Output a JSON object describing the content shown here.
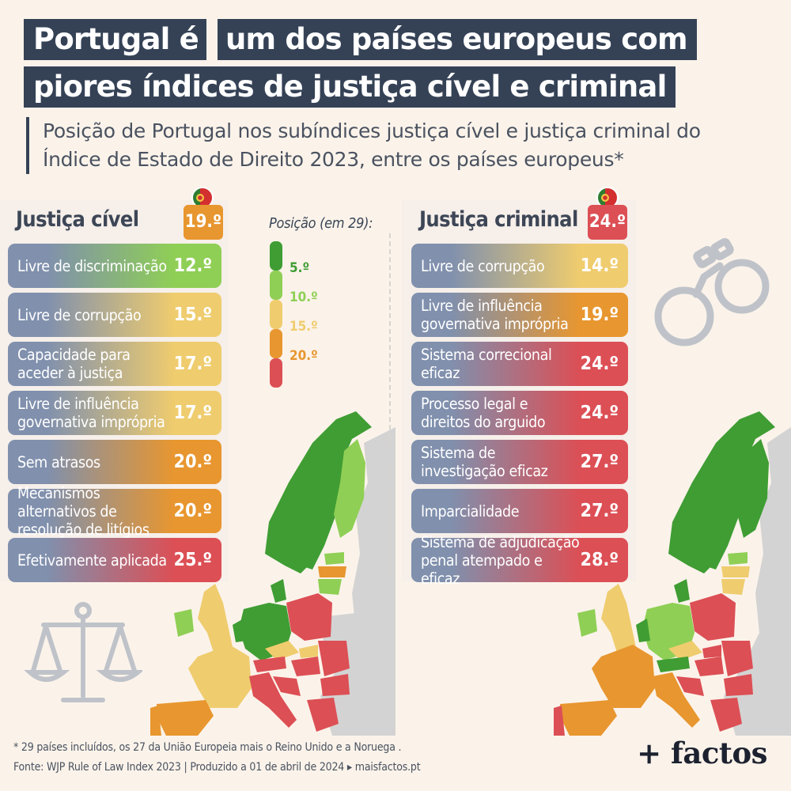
{
  "header": {
    "title_line1_highlight": "Portugal é",
    "title_line1_rest": "um dos países europeus com",
    "title_line2": "piores índices de justiça cível e criminal",
    "subtitle": "Posição de Portugal nos subíndices justiça cível e justiça criminal do Índice de Estado de Direito 2023, entre os países europeus*"
  },
  "colors": {
    "dark_green": "#3f9d33",
    "light_green": "#8fcf55",
    "yellow": "#efcc6e",
    "orange": "#e8962f",
    "red": "#dc4f55",
    "slate": "#8090ad",
    "navy": "#354256",
    "grey_land": "#d3d3d3"
  },
  "civil": {
    "title": "Justiça cível",
    "overall": "19.º",
    "items": [
      {
        "label": "Livre de discriminação",
        "value": "12.º"
      },
      {
        "label": "Livre de corrupção",
        "value": "15.º"
      },
      {
        "label": "Capacidade para aceder à justiça",
        "value": "17.º"
      },
      {
        "label": "Livre de influência governativa imprópria",
        "value": "17.º"
      },
      {
        "label": "Sem atrasos",
        "value": "20.º"
      },
      {
        "label": "Mecanismos alternativos de resolução de litígios",
        "value": "20.º"
      },
      {
        "label": "Efetivamente aplicada",
        "value": "25.º"
      }
    ]
  },
  "criminal": {
    "title": "Justiça criminal",
    "overall": "24.º",
    "items": [
      {
        "label": "Livre de corrupção",
        "value": "14.º"
      },
      {
        "label": "Livre de influência governativa imprópria",
        "value": "19.º"
      },
      {
        "label": "Sistema correcional eficaz",
        "value": "24.º"
      },
      {
        "label": "Processo legal e direitos do arguido",
        "value": "24.º"
      },
      {
        "label": "Sistema de investigação eficaz",
        "value": "27.º"
      },
      {
        "label": "Imparcialidade",
        "value": "27.º"
      },
      {
        "label": "Sistema de adjudicação penal atempado e eficaz",
        "value": "28.º"
      }
    ]
  },
  "legend": {
    "title": "Posição (em 29):",
    "items": [
      {
        "label": "5.º",
        "color": "#3f9d33"
      },
      {
        "label": "10.º",
        "color": "#8fcf55"
      },
      {
        "label": "15.º",
        "color": "#efcc6e"
      },
      {
        "label": "20.º",
        "color": "#e8962f"
      },
      {
        "label": "",
        "color": "#dc4f55"
      }
    ]
  },
  "icons": [
    "portugal-flag-icon",
    "scales-of-justice-icon",
    "handcuffs-icon"
  ],
  "footer": {
    "note": "* 29 países incluídos, os 27 da União Europeia mais o Reino Unido e a Noruega .",
    "source": "Fonte: WJP Rule of Law Index 2023 | Produzido a 01 de abril de 2024 ▸ maisfactos.pt",
    "brand": "+ factos"
  }
}
